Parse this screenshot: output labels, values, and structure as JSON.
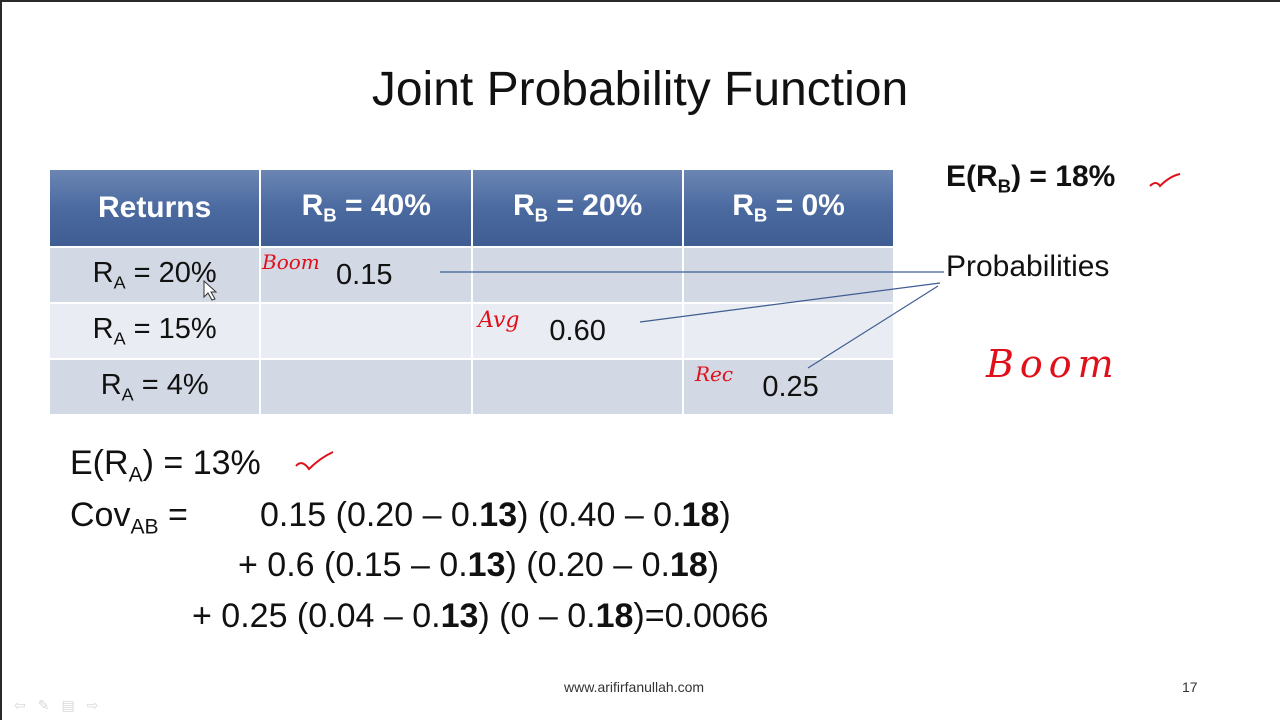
{
  "title": "Joint Probability Function",
  "table": {
    "headers": [
      {
        "main": "Returns",
        "sub": "",
        "tail": ""
      },
      {
        "main": "R",
        "sub": "B",
        "tail": " = 40%"
      },
      {
        "main": "R",
        "sub": "B",
        "tail": " = 20%"
      },
      {
        "main": "R",
        "sub": "B",
        "tail": " = 0%"
      }
    ],
    "rows": [
      {
        "label_main": "R",
        "label_sub": "A",
        "label_tail": " = 20%",
        "cells": [
          "0.15",
          "",
          ""
        ]
      },
      {
        "label_main": "R",
        "label_sub": "A",
        "label_tail": " = 15%",
        "cells": [
          "",
          "0.60",
          ""
        ]
      },
      {
        "label_main": "R",
        "label_sub": "A",
        "label_tail": " = 4%",
        "cells": [
          "",
          "",
          "0.25"
        ]
      }
    ]
  },
  "expected_b": {
    "prefix": "E(R",
    "sub": "B",
    "suffix": ") = 18%"
  },
  "probabilities_label": "Probabilities",
  "expected_a": {
    "prefix": "E(R",
    "sub": "A",
    "suffix": ") = 13%"
  },
  "covariance": {
    "label_main": "Cov",
    "label_sub": "AB",
    "label_eq": " =",
    "line1": {
      "a": "0.15 (0.20 – 0.",
      "b": "13",
      "c": ") (0.40 – 0.",
      "d": "18",
      "e": ")"
    },
    "line2": {
      "a": "+ 0.6  (0.15 – 0.",
      "b": "13",
      "c": ") (0.20 – 0.",
      "d": "18",
      "e": ")"
    },
    "line3": {
      "a": "+ 0.25 (0.04 – 0.",
      "b": "13",
      "c": ") (0 – 0.",
      "d": "18",
      "e": ")=0.0066"
    }
  },
  "annotations": {
    "boom_small": "Boom",
    "avg": "Avg",
    "rec": "Rec",
    "boom_large": "Boom",
    "check_icon": "checkmark"
  },
  "footer": {
    "url": "www.arifirfanullah.com",
    "page": "17"
  },
  "nav_icons": [
    "arrow-left-icon",
    "pen-icon",
    "slides-icon",
    "arrow-right-icon"
  ],
  "colors": {
    "header_blue": "#4b6aa0",
    "row_dark": "#d3d9e4",
    "row_light": "#e9ecf2",
    "ink_red": "#e0101a",
    "connector_line": "#3f5d93"
  }
}
